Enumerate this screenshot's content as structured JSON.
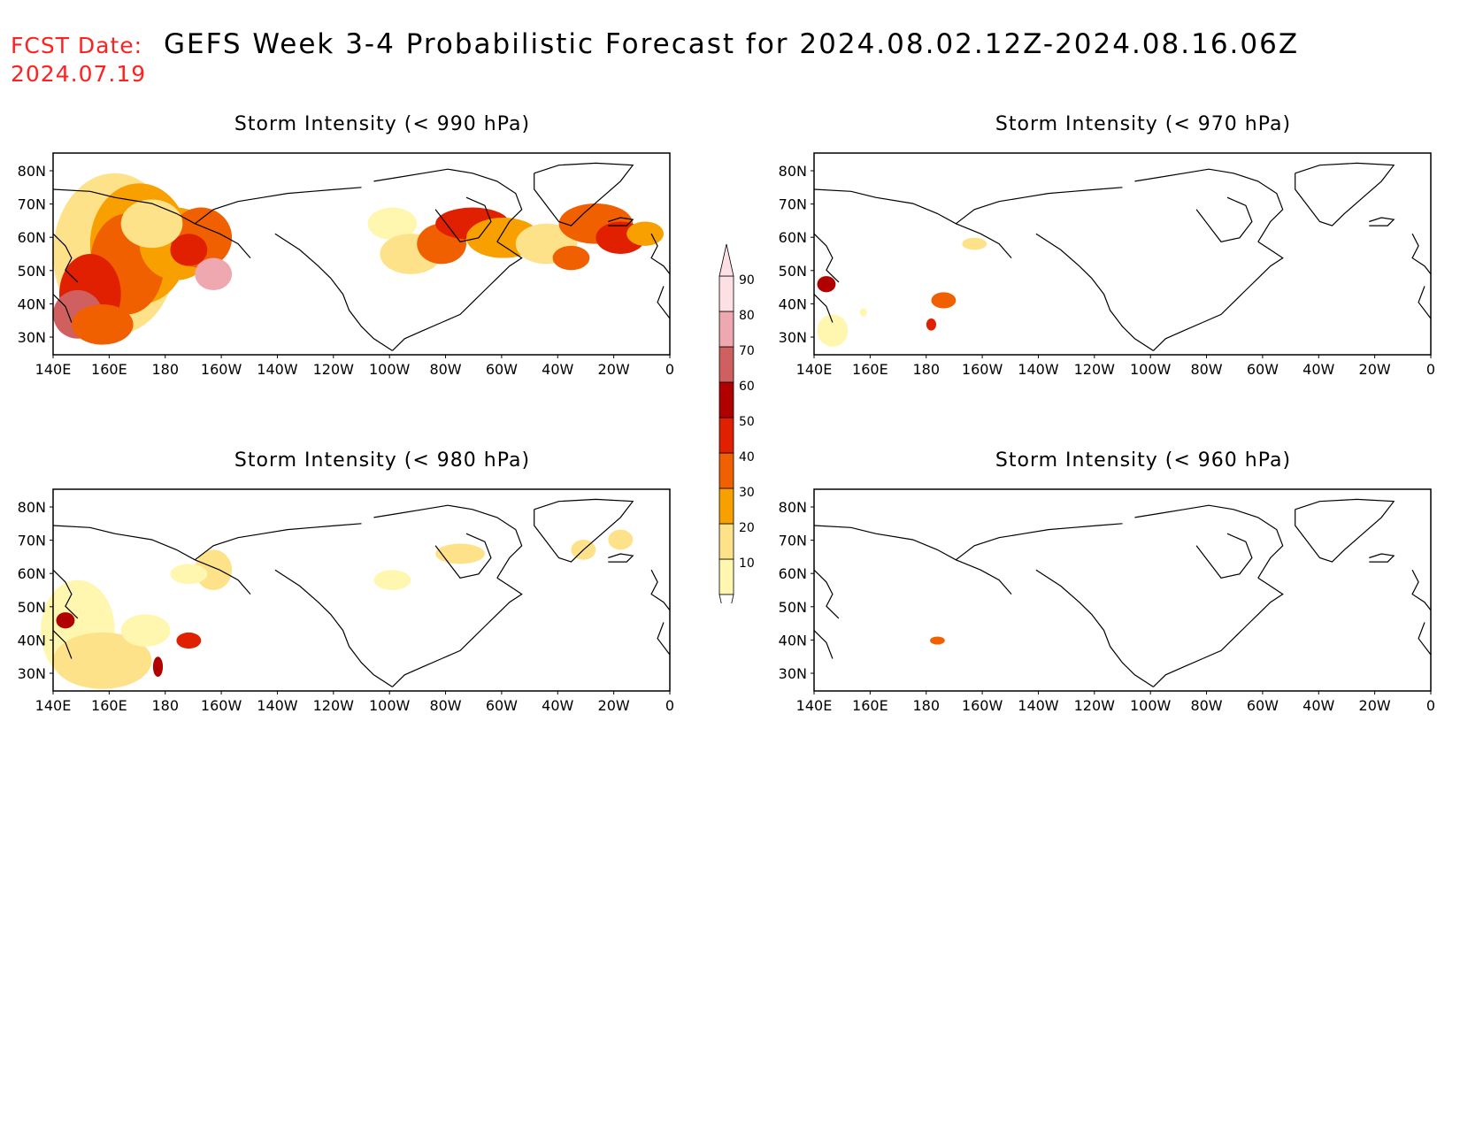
{
  "header": {
    "fcst_label": "FCST Date:",
    "fcst_date": "2024.07.19",
    "title": "GEFS Week 3-4 Probabilistic Forecast for 2024.08.02.12Z-2024.08.16.06Z"
  },
  "axes": {
    "lat_labels": [
      "80N",
      "70N",
      "60N",
      "50N",
      "40N",
      "30N"
    ],
    "lon_labels": [
      "140E",
      "160E",
      "180",
      "160W",
      "140W",
      "120W",
      "100W",
      "80W",
      "60W",
      "40W",
      "20W",
      "0"
    ]
  },
  "panels": [
    {
      "id": "p990",
      "title": "Storm Intensity (< 990 hPa)"
    },
    {
      "id": "p970",
      "title": "Storm Intensity (< 970 hPa)"
    },
    {
      "id": "p980",
      "title": "Storm Intensity (< 980 hPa)"
    },
    {
      "id": "p960",
      "title": "Storm Intensity (< 960 hPa)"
    }
  ],
  "colorbar": {
    "levels": [
      "10",
      "20",
      "30",
      "40",
      "50",
      "60",
      "70",
      "80",
      "90"
    ],
    "colors": [
      "#fff7b0",
      "#fde28a",
      "#f8a000",
      "#f06000",
      "#e02000",
      "#b00000",
      "#d06060",
      "#f0a8b0",
      "#fde0e4"
    ]
  }
}
